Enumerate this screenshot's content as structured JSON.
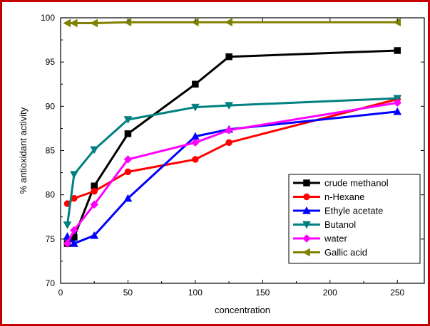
{
  "chart_data": {
    "type": "line",
    "xlabel": "concentration",
    "ylabel": "% antioxidant activity",
    "xlim": [
      0,
      270
    ],
    "ylim": [
      70,
      100
    ],
    "x_ticks": [
      0,
      50,
      100,
      150,
      200,
      250
    ],
    "y_ticks": [
      70,
      75,
      80,
      85,
      90,
      95,
      100
    ],
    "legend_position": "lower-right",
    "grid": false,
    "series": [
      {
        "name": "crude methanol",
        "color": "#000000",
        "marker": "square",
        "x": [
          5,
          10,
          25,
          50,
          100,
          125,
          250
        ],
        "y": [
          74.5,
          75.2,
          81.0,
          86.9,
          92.5,
          95.6,
          96.3
        ]
      },
      {
        "name": "n-Hexane",
        "color": "#ff0000",
        "marker": "circle",
        "x": [
          5,
          10,
          25,
          50,
          100,
          125,
          250
        ],
        "y": [
          79.0,
          79.6,
          80.4,
          82.6,
          84.0,
          85.9,
          90.8
        ]
      },
      {
        "name": "Ethyle acetate",
        "color": "#0000ff",
        "marker": "triangle-up",
        "x": [
          5,
          10,
          25,
          50,
          100,
          125,
          250
        ],
        "y": [
          75.3,
          74.5,
          75.4,
          79.6,
          86.6,
          87.4,
          89.4
        ]
      },
      {
        "name": "Butanol",
        "color": "#008080",
        "marker": "triangle-down",
        "x": [
          5,
          10,
          25,
          50,
          100,
          125,
          250
        ],
        "y": [
          76.6,
          82.3,
          85.1,
          88.5,
          89.9,
          90.1,
          90.9
        ]
      },
      {
        "name": "water",
        "color": "#ff00ff",
        "marker": "diamond",
        "x": [
          5,
          10,
          25,
          50,
          100,
          125,
          250
        ],
        "y": [
          74.5,
          76.0,
          78.9,
          84.0,
          85.9,
          87.3,
          90.4
        ]
      },
      {
        "name": "Gallic acid",
        "color": "#808000",
        "marker": "triangle-left",
        "x": [
          5,
          10,
          25,
          50,
          100,
          125,
          250
        ],
        "y": [
          99.4,
          99.4,
          99.4,
          99.5,
          99.5,
          99.5,
          99.5
        ]
      }
    ]
  }
}
